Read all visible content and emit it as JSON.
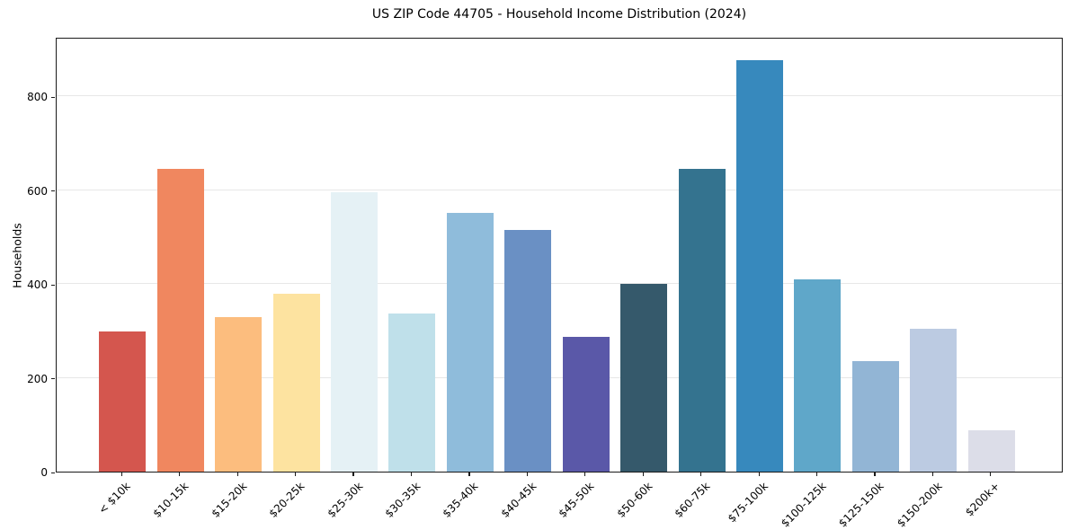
{
  "header": {
    "title": "US ZIP Code 44705 - Household Income Distribution (2024)"
  },
  "chart_data": {
    "type": "bar",
    "title": "US ZIP Code 44705 - Household Income Distribution (2024)",
    "xlabel": "",
    "ylabel": "Households",
    "categories": [
      "< $10k",
      "$10-15k",
      "$15-20k",
      "$20-25k",
      "$25-30k",
      "$30-35k",
      "$35-40k",
      "$40-45k",
      "$45-50k",
      "$50-60k",
      "$60-75k",
      "$75-100k",
      "$100-125k",
      "$125-150k",
      "$150-200k",
      "$200k+"
    ],
    "values": [
      298,
      645,
      330,
      380,
      595,
      338,
      551,
      515,
      287,
      400,
      645,
      878,
      410,
      235,
      305,
      88
    ],
    "bar_colors": [
      "#d4564e",
      "#f0875f",
      "#fcbd7e",
      "#fde3a0",
      "#e5f1f5",
      "#bfe0ea",
      "#8fbcdb",
      "#6a90c4",
      "#5a58a8",
      "#35596b",
      "#34738f",
      "#3789bd",
      "#5fa7c9",
      "#92b5d5",
      "#bccbe2",
      "#dcdde8"
    ],
    "yticks": [
      0,
      200,
      400,
      600,
      800
    ],
    "ylim": [
      0,
      927
    ],
    "grid": "horizontal",
    "grid_color": "#e7e7e7",
    "axis_color": "#1a1a1a",
    "background": "#ffffff",
    "legend_position": "none"
  }
}
